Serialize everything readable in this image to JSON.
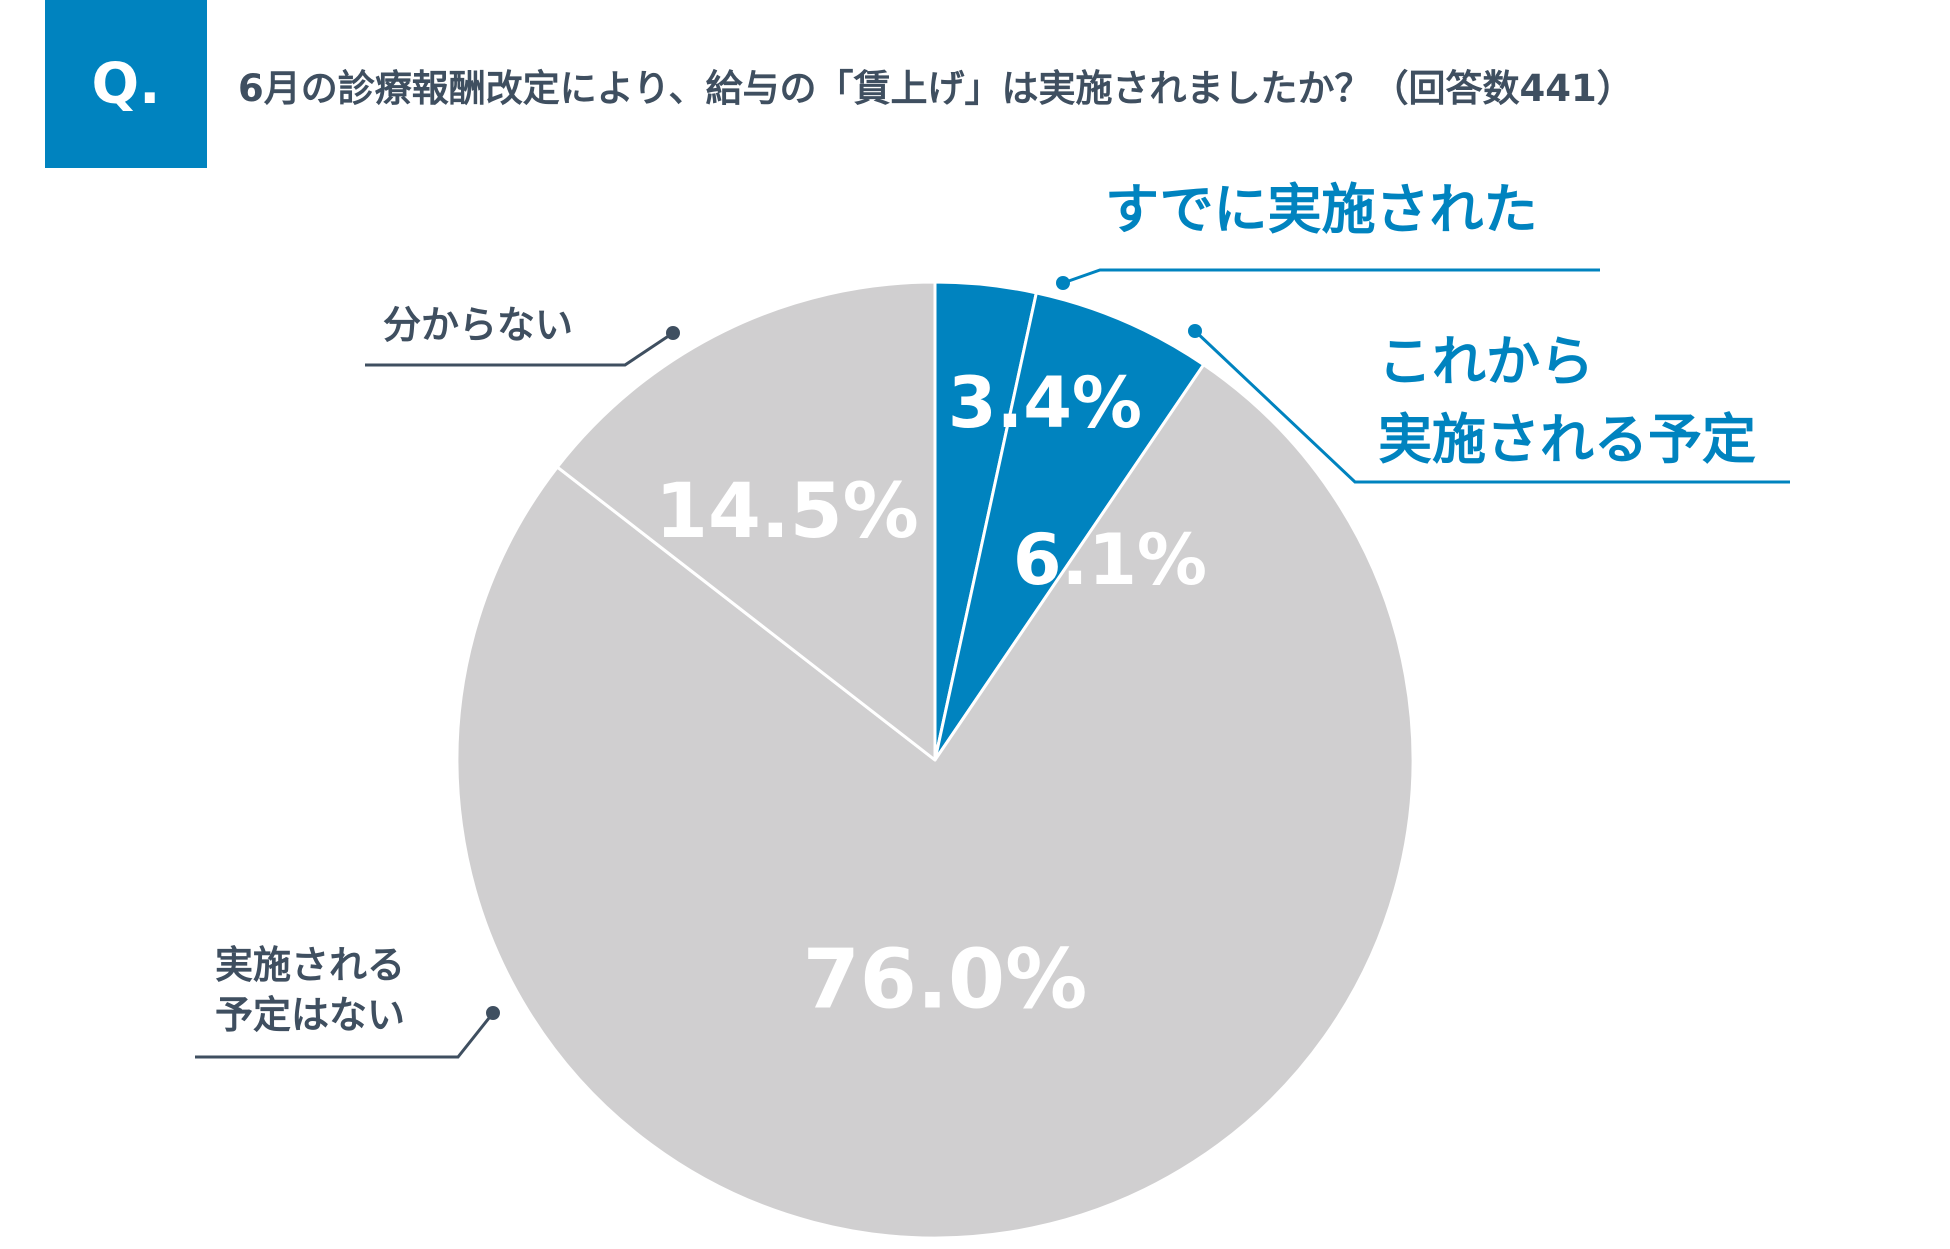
{
  "badge": "Q.",
  "question": "6月の診療報酬改定により、給与の「賃上げ」は実施されましたか？（回答数441）",
  "colors": {
    "accent": "#0083bf",
    "neutral": "#d0cfd0",
    "label_text": "#3f4f60",
    "leader": "#3f4f60"
  },
  "chart_data": {
    "type": "pie",
    "title": "6月の診療報酬改定により、給与の「賃上げ」は実施されましたか？（回答数441）",
    "start_angle": "12 o'clock",
    "direction": "clockwise",
    "slices": [
      {
        "label_lines": [
          "すでに実施された"
        ],
        "value": 3.4,
        "value_label": "3.4%",
        "color": "#0083bf"
      },
      {
        "label_lines": [
          "これから",
          "実施される予定"
        ],
        "value": 6.1,
        "value_label": "6.1%",
        "color": "#0083bf"
      },
      {
        "label_lines": [
          "実施される",
          "予定はない"
        ],
        "value": 76.0,
        "value_label": "76.0%",
        "color": "#d0cfd0"
      },
      {
        "label_lines": [
          "分からない"
        ],
        "value": 14.5,
        "value_label": "14.5%",
        "color": "#d0cfd0"
      }
    ]
  }
}
